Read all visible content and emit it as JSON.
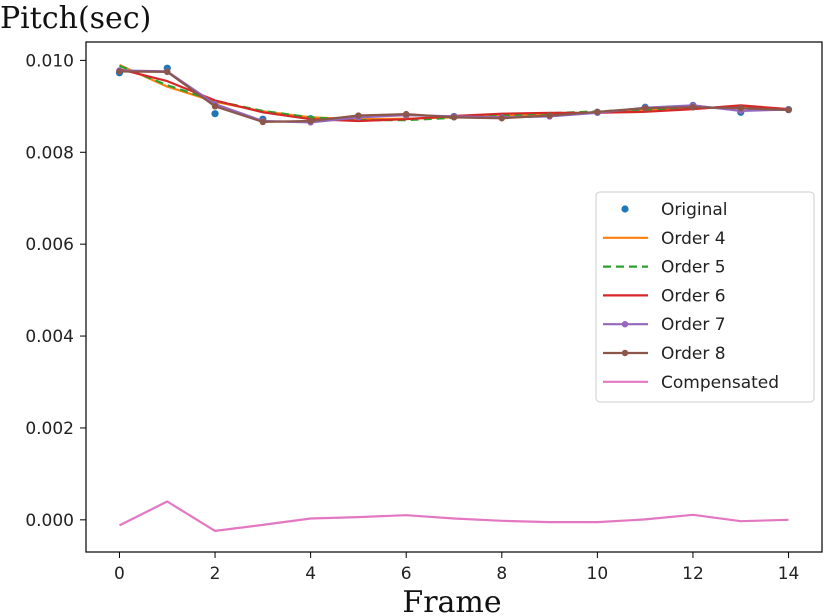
{
  "chart_data": {
    "type": "line",
    "title": "",
    "ylabel": "Pitch(sec)",
    "xlabel": "Frame",
    "xlim": [
      -0.7,
      14.7
    ],
    "ylim": [
      -0.0007,
      0.0104
    ],
    "x_ticks": [
      0,
      2,
      4,
      6,
      8,
      10,
      12,
      14
    ],
    "y_ticks": [
      0.0,
      0.002,
      0.004,
      0.006,
      0.008,
      0.01
    ],
    "y_tick_labels": [
      "0.000",
      "0.002",
      "0.004",
      "0.006",
      "0.008",
      "0.010"
    ],
    "legend_position": "center-right",
    "x": [
      0,
      1,
      2,
      3,
      4,
      5,
      6,
      7,
      8,
      9,
      10,
      11,
      12,
      13,
      14
    ],
    "series": [
      {
        "name": "Original",
        "style": "points",
        "color": "#1f77b4",
        "values": [
          0.00973,
          0.00983,
          0.00884,
          0.00872,
          0.00873,
          0.00878,
          0.00881,
          0.00878,
          0.00877,
          0.0088,
          0.00887,
          0.00898,
          0.00902,
          0.00887,
          0.00893
        ]
      },
      {
        "name": "Order 4",
        "style": "line",
        "color": "#ff7f0e",
        "values": [
          0.0099,
          0.00943,
          0.0091,
          0.00889,
          0.00876,
          0.00872,
          0.00873,
          0.00876,
          0.00879,
          0.00883,
          0.00887,
          0.00891,
          0.00895,
          0.009,
          0.00894
        ]
      },
      {
        "name": "Order 5",
        "style": "dashed",
        "color": "#2ca02c",
        "values": [
          0.00988,
          0.00946,
          0.00912,
          0.0089,
          0.00876,
          0.0087,
          0.0087,
          0.00875,
          0.0088,
          0.00885,
          0.00889,
          0.00893,
          0.00896,
          0.00898,
          0.00894
        ]
      },
      {
        "name": "Order 6",
        "style": "line",
        "color": "#d62728",
        "values": [
          0.00981,
          0.00955,
          0.00913,
          0.00887,
          0.00872,
          0.00868,
          0.00872,
          0.00879,
          0.00884,
          0.00886,
          0.00886,
          0.00888,
          0.00894,
          0.00902,
          0.00894
        ]
      },
      {
        "name": " Order 7",
        "style": "line-marker",
        "color": "#9467bd",
        "values": [
          0.00978,
          0.00976,
          0.00905,
          0.00868,
          0.00865,
          0.00876,
          0.00881,
          0.00878,
          0.00876,
          0.00878,
          0.00886,
          0.00897,
          0.00902,
          0.0089,
          0.00893
        ]
      },
      {
        "name": " Order 8",
        "style": "line-marker",
        "color": "#8c564b",
        "values": [
          0.00976,
          0.00975,
          0.009,
          0.00866,
          0.00868,
          0.0088,
          0.00883,
          0.00876,
          0.00874,
          0.0088,
          0.00888,
          0.00896,
          0.00898,
          0.00896,
          0.00892
        ]
      },
      {
        "name": "Compensated",
        "style": "line",
        "color": "#e377c2",
        "values": [
          -0.00012,
          0.0004,
          -0.00024,
          -0.00011,
          3e-05,
          6e-05,
          0.0001,
          3e-05,
          -2e-05,
          -5e-05,
          -5e-05,
          1e-05,
          0.00011,
          -3e-05,
          0.0
        ]
      }
    ]
  }
}
